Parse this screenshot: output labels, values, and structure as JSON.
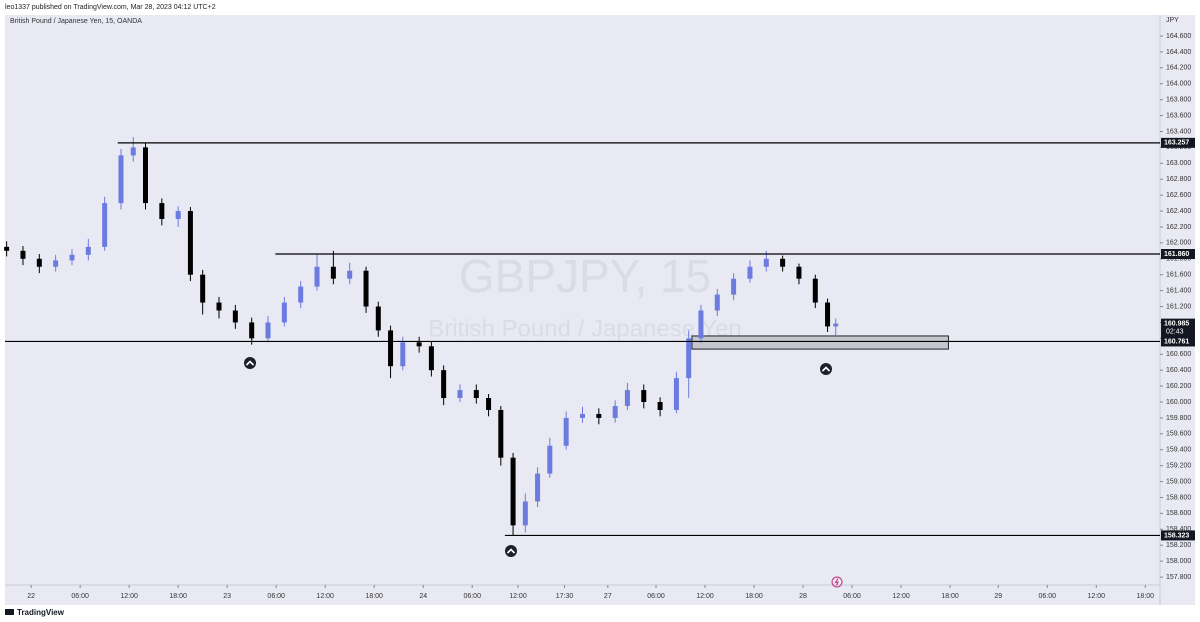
{
  "published": "leo1337 published on TradingView.com, Mar 28, 2023 04:12 UTC+2",
  "brand": "TradingView",
  "chart_data": {
    "type": "candlestick",
    "title": "British Pound / Japanese Yen, 15, OANDA",
    "watermark": "GBPJPY, 15",
    "watermark_subtitle": "British Pound / Japanese Yen",
    "y_axis_label": "JPY",
    "up_color": "#6b7be0",
    "down_color": "#000000",
    "x": [
      -3,
      -1,
      1,
      3,
      5,
      7,
      9,
      11,
      12.5,
      14,
      16,
      18,
      19.5,
      21,
      23,
      25,
      27,
      29,
      31,
      33,
      35,
      37,
      39,
      41,
      42.5,
      44,
      45.5,
      47.5,
      49,
      50.5,
      52.5,
      54.5,
      56,
      57.5,
      59,
      60.5,
      62,
      63.5,
      65.5,
      67.5,
      69.5,
      71.5,
      73,
      75,
      77,
      79,
      80.5,
      82,
      84,
      86,
      88,
      90,
      92,
      94,
      96,
      97.5,
      98.5
    ],
    "open": [
      161.95,
      161.9,
      161.8,
      161.7,
      161.78,
      161.85,
      161.95,
      162.5,
      163.1,
      163.2,
      162.5,
      162.3,
      162.4,
      161.6,
      161.25,
      161.15,
      161,
      160.8,
      161,
      161.25,
      161.45,
      161.7,
      161.55,
      161.65,
      161.2,
      160.9,
      160.45,
      160.75,
      160.7,
      160.4,
      160.05,
      160.15,
      160.05,
      159.9,
      159.3,
      158.45,
      158.75,
      159.1,
      159.45,
      159.8,
      159.85,
      159.8,
      159.95,
      160.15,
      160,
      159.9,
      160.3,
      160.8,
      161.15,
      161.35,
      161.55,
      161.7,
      161.8,
      161.7,
      161.55,
      161.25,
      160.95
    ],
    "high": [
      162.02,
      161.96,
      161.86,
      161.85,
      161.92,
      162.05,
      162.58,
      163.18,
      163.33,
      163.26,
      162.56,
      162.46,
      162.45,
      161.66,
      161.32,
      161.22,
      161.06,
      161.08,
      161.32,
      161.52,
      161.86,
      161.9,
      161.75,
      161.7,
      161.26,
      160.96,
      160.82,
      160.82,
      160.76,
      160.46,
      160.22,
      160.22,
      160.1,
      159.95,
      159.36,
      158.85,
      159.18,
      159.55,
      159.88,
      159.94,
      159.92,
      160.02,
      160.24,
      160.22,
      160.06,
      160.38,
      160.9,
      161.22,
      161.42,
      161.62,
      161.78,
      161.9,
      161.84,
      161.74,
      161.6,
      161.3,
      161.05
    ],
    "low": [
      161.83,
      161.72,
      161.62,
      161.64,
      161.72,
      161.78,
      161.9,
      162.42,
      163.02,
      162.42,
      162.22,
      162.2,
      161.52,
      161.1,
      161.05,
      160.92,
      160.72,
      160.75,
      160.95,
      161.18,
      161.4,
      161.48,
      161.48,
      161.12,
      160.82,
      160.3,
      160.4,
      160.62,
      160.32,
      159.96,
      160,
      159.98,
      159.82,
      159.2,
      158.32,
      158.36,
      158.68,
      159.05,
      159.4,
      159.74,
      159.72,
      159.74,
      159.9,
      159.92,
      159.82,
      159.86,
      160.05,
      160.74,
      161.08,
      161.28,
      161.5,
      161.64,
      161.64,
      161.48,
      161.18,
      160.88,
      160.84
    ],
    "close": [
      161.9,
      161.8,
      161.7,
      161.78,
      161.85,
      161.95,
      162.5,
      163.1,
      163.2,
      162.5,
      162.3,
      162.4,
      161.6,
      161.25,
      161.15,
      161,
      160.8,
      161,
      161.25,
      161.45,
      161.7,
      161.55,
      161.65,
      161.2,
      160.9,
      160.45,
      160.75,
      160.7,
      160.4,
      160.05,
      160.15,
      160.05,
      159.9,
      159.3,
      158.45,
      158.75,
      159.1,
      159.45,
      159.8,
      159.85,
      159.8,
      159.95,
      160.15,
      160,
      159.9,
      160.3,
      160.8,
      161.15,
      161.35,
      161.55,
      161.7,
      161.8,
      161.7,
      161.55,
      161.25,
      160.95,
      160.985
    ],
    "xlim": [
      -3.2,
      138.2
    ],
    "xticks": [
      {
        "value": 0,
        "label": "22"
      },
      {
        "value": 6,
        "label": "06:00"
      },
      {
        "value": 12,
        "label": "12:00"
      },
      {
        "value": 18,
        "label": "18:00"
      },
      {
        "value": 24,
        "label": "23"
      },
      {
        "value": 30,
        "label": "06:00"
      },
      {
        "value": 36,
        "label": "12:00"
      },
      {
        "value": 42,
        "label": "18:00"
      },
      {
        "value": 48,
        "label": "24"
      },
      {
        "value": 54,
        "label": "06:00"
      },
      {
        "value": 59.6,
        "label": "12:00"
      },
      {
        "value": 65.3,
        "label": "17:30"
      },
      {
        "value": 70.6,
        "label": "27"
      },
      {
        "value": 76.5,
        "label": "06:00"
      },
      {
        "value": 82.5,
        "label": "12:00"
      },
      {
        "value": 88.5,
        "label": "18:00"
      },
      {
        "value": 94.5,
        "label": "28"
      },
      {
        "value": 100.5,
        "label": "06:00"
      },
      {
        "value": 106.5,
        "label": "12:00"
      },
      {
        "value": 112.5,
        "label": "18:00"
      },
      {
        "value": 118.4,
        "label": "29"
      },
      {
        "value": 124.4,
        "label": "06:00"
      },
      {
        "value": 130.4,
        "label": "12:00"
      },
      {
        "value": 136.4,
        "label": "18:00"
      }
    ],
    "ylim": [
      157.7,
      164.864
    ],
    "yticks": [
      {
        "value": 157.8,
        "label": "157.800"
      },
      {
        "value": 158,
        "label": "158.000"
      },
      {
        "value": 158.2,
        "label": "158.200"
      },
      {
        "value": 158.4,
        "label": "158.400"
      },
      {
        "value": 158.6,
        "label": "158.600"
      },
      {
        "value": 158.8,
        "label": "158.800"
      },
      {
        "value": 159,
        "label": "159.000"
      },
      {
        "value": 159.2,
        "label": "159.200"
      },
      {
        "value": 159.4,
        "label": "159.400"
      },
      {
        "value": 159.6,
        "label": "159.600"
      },
      {
        "value": 159.8,
        "label": "159.800"
      },
      {
        "value": 160,
        "label": "160.000"
      },
      {
        "value": 160.2,
        "label": "160.200"
      },
      {
        "value": 160.4,
        "label": "160.400"
      },
      {
        "value": 160.6,
        "label": "160.600"
      },
      {
        "value": 160.8,
        "label": "160.800"
      },
      {
        "value": 161,
        "label": "161.000"
      },
      {
        "value": 161.2,
        "label": "161.200"
      },
      {
        "value": 161.4,
        "label": "161.400"
      },
      {
        "value": 161.6,
        "label": "161.600"
      },
      {
        "value": 161.8,
        "label": "161.800"
      },
      {
        "value": 162,
        "label": "162.000"
      },
      {
        "value": 162.2,
        "label": "162.200"
      },
      {
        "value": 162.4,
        "label": "162.400"
      },
      {
        "value": 162.6,
        "label": "162.600"
      },
      {
        "value": 162.8,
        "label": "162.800"
      },
      {
        "value": 163,
        "label": "163.000"
      },
      {
        "value": 163.2,
        "label": "163.200"
      },
      {
        "value": 163.4,
        "label": "163.400"
      },
      {
        "value": 163.6,
        "label": "163.600"
      },
      {
        "value": 163.8,
        "label": "163.800"
      },
      {
        "value": 164,
        "label": "164.000"
      },
      {
        "value": 164.2,
        "label": "164.200"
      },
      {
        "value": 164.4,
        "label": "164.400"
      },
      {
        "value": 164.6,
        "label": "164.600"
      }
    ],
    "levels": [
      {
        "value": 163.257,
        "label": "163.257",
        "start": 10.6
      },
      {
        "value": 161.86,
        "label": "161.860",
        "start": 29.9
      },
      {
        "value": 160.761,
        "label": "160.761",
        "start": -3.2
      },
      {
        "value": 158.323,
        "label": "158.323",
        "start": 58
      }
    ],
    "current_price": {
      "value": 160.985,
      "label": "160.985",
      "countdown": "02:43"
    },
    "zone": {
      "x": [
        80.9,
        112.3
      ],
      "y": [
        160.665,
        160.83
      ]
    }
  }
}
